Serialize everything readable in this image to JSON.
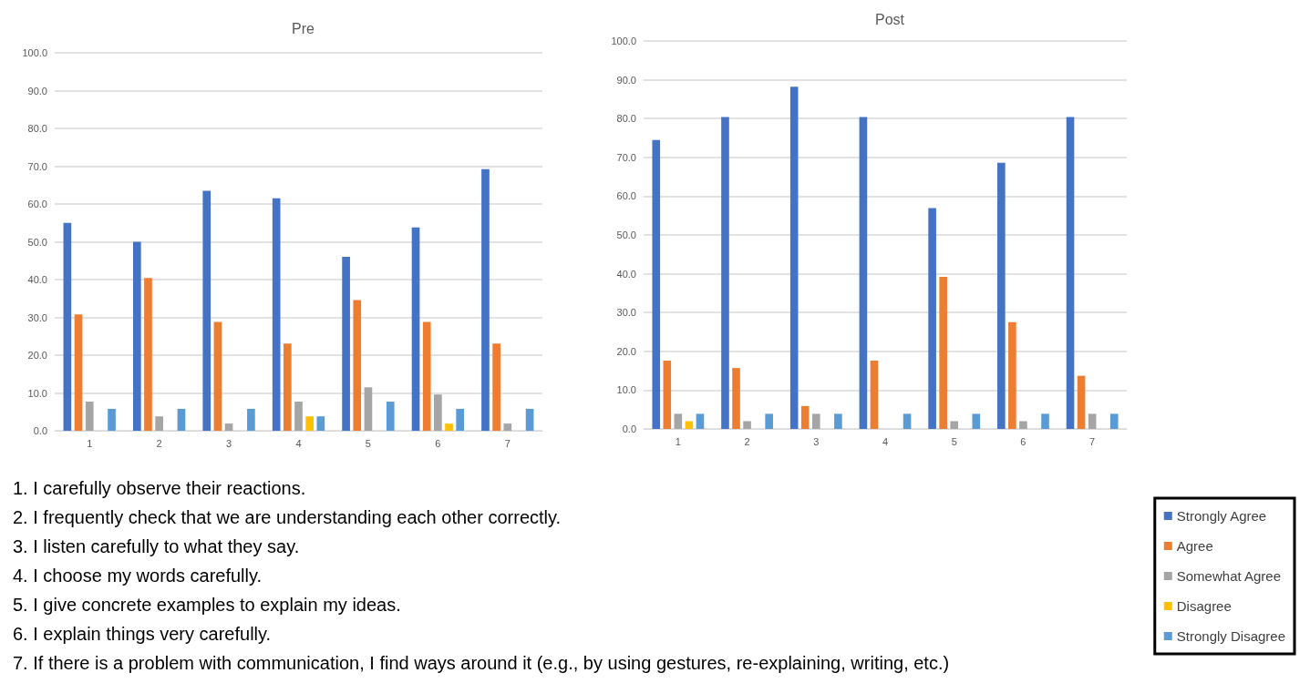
{
  "chart_data": [
    {
      "type": "bar",
      "title": "Pre",
      "categories": [
        "1",
        "2",
        "3",
        "4",
        "5",
        "6",
        "7"
      ],
      "series": [
        {
          "color": "#4472c4",
          "values": [
            55.0,
            50.0,
            63.5,
            61.5,
            46.0,
            53.8,
            69.2
          ]
        },
        {
          "color": "#ed7d31",
          "values": [
            30.8,
            40.4,
            28.8,
            23.1,
            34.6,
            28.8,
            23.1
          ]
        },
        {
          "color": "#a5a5a5",
          "values": [
            7.7,
            3.8,
            1.9,
            7.7,
            11.5,
            9.6,
            1.9
          ]
        },
        {
          "color": "#ffc000",
          "values": [
            0,
            0,
            0,
            3.8,
            0,
            1.9,
            0
          ]
        },
        {
          "color": "#5b9bd5",
          "values": [
            5.8,
            5.8,
            5.8,
            3.8,
            7.7,
            5.8,
            5.8
          ]
        }
      ],
      "ylim": [
        0,
        100
      ],
      "yticks": [
        {
          "value": 0,
          "label": "0.0"
        },
        {
          "value": 10,
          "label": "10.0"
        },
        {
          "value": 20,
          "label": "20.0"
        },
        {
          "value": 30,
          "label": "30.0"
        },
        {
          "value": 40,
          "label": "40.0"
        },
        {
          "value": 50,
          "label": "50.0"
        },
        {
          "value": 60,
          "label": "60.0"
        },
        {
          "value": 70,
          "label": "70.0"
        },
        {
          "value": 80,
          "label": "80.0"
        },
        {
          "value": 90,
          "label": "90.0"
        },
        {
          "value": 100,
          "label": "100.0"
        }
      ],
      "grid": "y",
      "annotations": [
        "1. I carefully observe their reactions.",
        "2. I frequently check that we are understanding each other correctly.",
        "3. I listen carefully to what they say.",
        "4. I choose my words carefully.",
        "5. I give concrete examples to explain my ideas.",
        "6. I explain things very carefully.",
        "7. If there is a problem with communication, I find ways around it (e.g., by using gestures, re-explaining, writing, etc.)"
      ]
    },
    {
      "type": "bar",
      "title": "Post",
      "categories": [
        "1",
        "2",
        "3",
        "4",
        "5",
        "6",
        "7"
      ],
      "series": [
        {
          "name": "Strongly Agree",
          "color": "#4472c4",
          "values": [
            74.5,
            80.4,
            88.2,
            80.4,
            56.9,
            68.6,
            80.4
          ]
        },
        {
          "name": "Agree",
          "color": "#ed7d31",
          "values": [
            17.6,
            15.7,
            5.9,
            17.6,
            39.2,
            27.5,
            13.7
          ]
        },
        {
          "name": "Somewhat Agree",
          "color": "#a5a5a5",
          "values": [
            3.9,
            2.0,
            3.9,
            0,
            2.0,
            2.0,
            3.9
          ]
        },
        {
          "name": "Disagree",
          "color": "#ffc000",
          "values": [
            2.0,
            0,
            0,
            0,
            0,
            0,
            0
          ]
        },
        {
          "name": "Strongly Disagree",
          "color": "#5b9bd5",
          "values": [
            3.9,
            3.9,
            3.9,
            3.9,
            3.9,
            3.9,
            3.9
          ]
        }
      ],
      "ylim": [
        0,
        100
      ],
      "yticks": [
        {
          "value": 0,
          "label": "0.0"
        },
        {
          "value": 10,
          "label": "10.0"
        },
        {
          "value": 20,
          "label": "20.0"
        },
        {
          "value": 30,
          "label": "30.0"
        },
        {
          "value": 40,
          "label": "40.0"
        },
        {
          "value": 50,
          "label": "50.0"
        },
        {
          "value": 60,
          "label": "60.0"
        },
        {
          "value": 70,
          "label": "70.0"
        },
        {
          "value": 80,
          "label": "80.0"
        },
        {
          "value": 90,
          "label": "90.0"
        },
        {
          "value": 100,
          "label": "100.0"
        }
      ],
      "grid": "y",
      "legend": "bottom right"
    }
  ]
}
